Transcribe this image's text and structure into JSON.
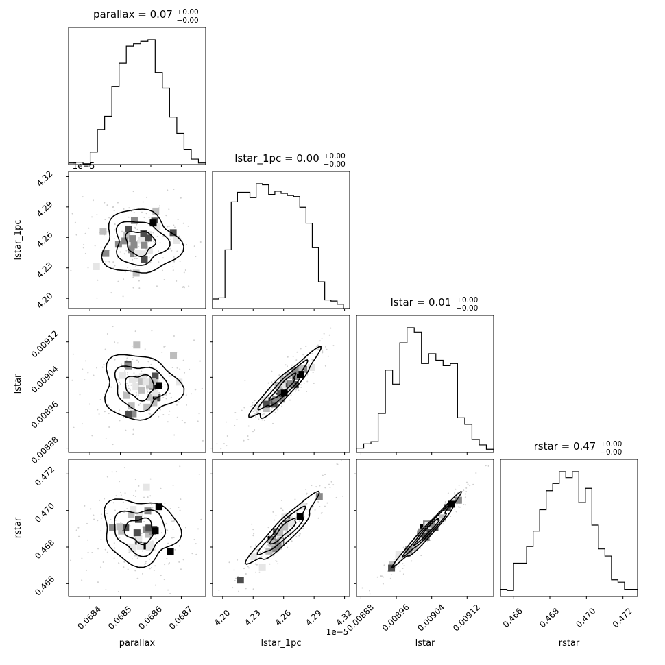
{
  "chart_data": {
    "type": "corner",
    "parameters": [
      "parallax",
      "lstar_1pc",
      "lstar",
      "rstar"
    ],
    "axis_labels": [
      "parallax",
      "lstar_1pc",
      "lstar",
      "rstar"
    ],
    "titles": [
      {
        "name": "parallax",
        "value": "0.07",
        "plus": "+0.00",
        "minus": "−0.00"
      },
      {
        "name": "lstar_1pc",
        "value": "0.00",
        "plus": "+0.00",
        "minus": "−0.00"
      },
      {
        "name": "lstar",
        "value": "0.01",
        "plus": "+0.00",
        "minus": "−0.00"
      },
      {
        "name": "rstar",
        "value": "0.47",
        "plus": "+0.00",
        "minus": "−0.00"
      }
    ],
    "ranges": [
      [
        0.06833,
        0.06878
      ],
      [
        4.19,
        4.325
      ],
      [
        0.00887,
        0.00918
      ],
      [
        0.4653,
        0.4728
      ]
    ],
    "ticks": [
      {
        "values": [
          0.0684,
          0.0685,
          0.0686,
          0.0687
        ],
        "labels": [
          "0.0684",
          "0.0685",
          "0.0686",
          "0.0687"
        ]
      },
      {
        "values": [
          4.2,
          4.23,
          4.26,
          4.29,
          4.32
        ],
        "labels": [
          "4.20",
          "4.23",
          "4.26",
          "4.29",
          "4.32"
        ]
      },
      {
        "values": [
          0.00888,
          0.00896,
          0.00904,
          0.00912
        ],
        "labels": [
          "0.00888",
          "0.00896",
          "0.00904",
          "0.00912"
        ]
      },
      {
        "values": [
          0.466,
          0.468,
          0.47,
          0.472
        ],
        "labels": [
          "0.466",
          "0.468",
          "0.470",
          "0.472"
        ]
      }
    ],
    "offset_label": "1e−5",
    "histograms": [
      [
        2,
        3,
        1,
        16,
        45,
        62,
        100,
        130,
        152,
        155,
        158,
        160,
        118,
        98,
        61,
        40,
        19,
        7,
        2
      ],
      [
        9,
        10,
        55,
        100,
        109,
        109,
        104,
        117,
        116,
        107,
        110,
        108,
        106,
        105,
        95,
        80,
        57,
        25,
        8,
        7,
        4,
        0
      ],
      [
        4,
        8,
        10,
        36,
        76,
        63,
        101,
        115,
        111,
        82,
        91,
        85,
        80,
        82,
        32,
        26,
        12,
        7,
        3
      ],
      [
        6,
        5,
        28,
        28,
        42,
        55,
        73,
        89,
        95,
        105,
        100,
        105,
        79,
        91,
        60,
        40,
        34,
        14,
        12,
        6,
        6
      ]
    ],
    "histogram_ranges": [
      [
        0.06833,
        0.06878
      ],
      [
        4.19,
        4.325
      ],
      [
        0.00887,
        0.00918
      ],
      [
        0.4653,
        0.4728
      ]
    ],
    "contour_levels": [
      "inner",
      "middle",
      "outer"
    ],
    "grid": false
  }
}
